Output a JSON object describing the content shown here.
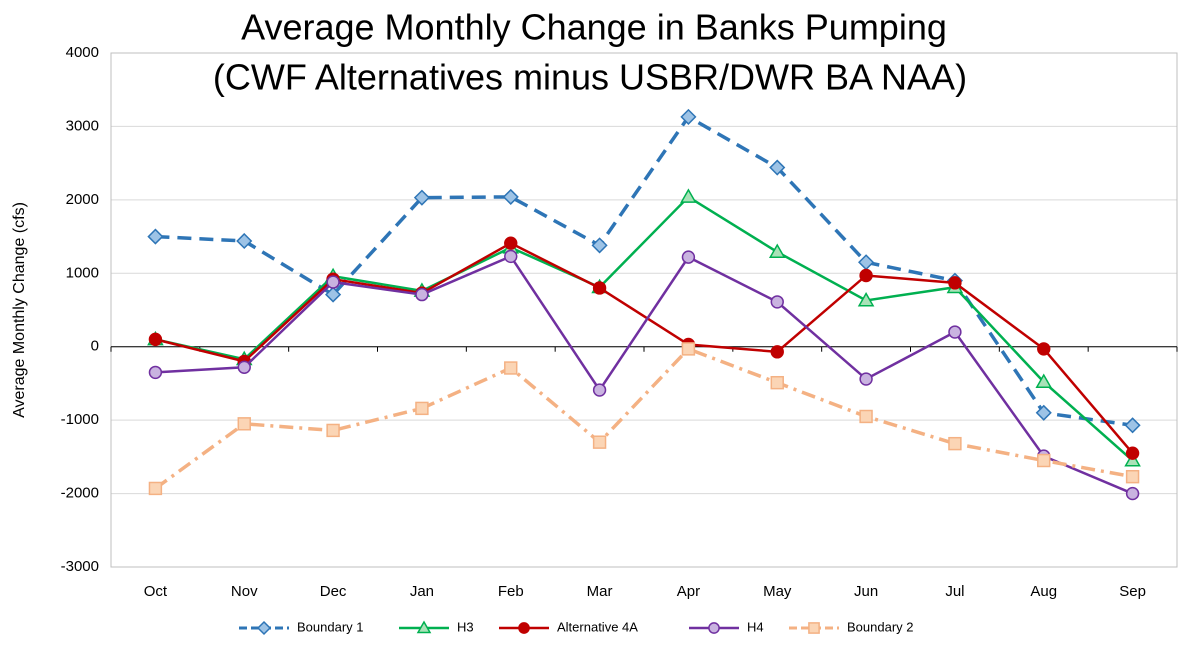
{
  "chart_data": {
    "type": "line",
    "title": "Average Monthly Change in Banks Pumping",
    "subtitle": "(CWF Alternatives minus USBR/DWR BA NAA)",
    "y_label": "Average Monthly Change (cfs)",
    "categories": [
      "Oct",
      "Nov",
      "Dec",
      "Jan",
      "Feb",
      "Mar",
      "Apr",
      "May",
      "Jun",
      "Jul",
      "Aug",
      "Sep"
    ],
    "series": [
      {
        "name": "Boundary 1",
        "color": "#2e75b6",
        "marker_fill": "#9dc3e6",
        "marker": "diamond",
        "dash": "14,8",
        "values": [
          1500,
          1440,
          710,
          2030,
          2040,
          1380,
          3130,
          2440,
          1150,
          900,
          -900,
          -1070
        ]
      },
      {
        "name": "H3",
        "color": "#00b050",
        "marker_fill": "#a9e2b8",
        "marker": "triangle",
        "dash": "none",
        "values": [
          100,
          -170,
          960,
          760,
          1350,
          810,
          2040,
          1290,
          630,
          810,
          -480,
          -1550
        ]
      },
      {
        "name": "Alternative 4A",
        "color": "#c00000",
        "marker_fill": "#c00000",
        "marker": "circle",
        "dash": "none",
        "values": [
          100,
          -200,
          920,
          730,
          1410,
          800,
          30,
          -70,
          970,
          870,
          -30,
          -1450
        ]
      },
      {
        "name": "H4",
        "color": "#7030a0",
        "marker_fill": "#c9b3e0",
        "marker": "circle",
        "dash": "none",
        "values": [
          -350,
          -280,
          880,
          710,
          1230,
          -590,
          1220,
          610,
          -440,
          200,
          -1490,
          -2000
        ]
      },
      {
        "name": "Boundary 2",
        "color": "#f4b183",
        "marker_fill": "#fbd5b5",
        "marker": "square",
        "dash": "14,6,3,6",
        "values": [
          -1930,
          -1050,
          -1140,
          -840,
          -290,
          -1300,
          -30,
          -490,
          -950,
          -1320,
          -1550,
          -1770
        ]
      }
    ],
    "ylim": [
      -3000,
      4000
    ],
    "yticks": [
      -3000,
      -2000,
      -1000,
      0,
      1000,
      2000,
      3000,
      4000
    ],
    "grid": true,
    "legend": "bottom"
  }
}
